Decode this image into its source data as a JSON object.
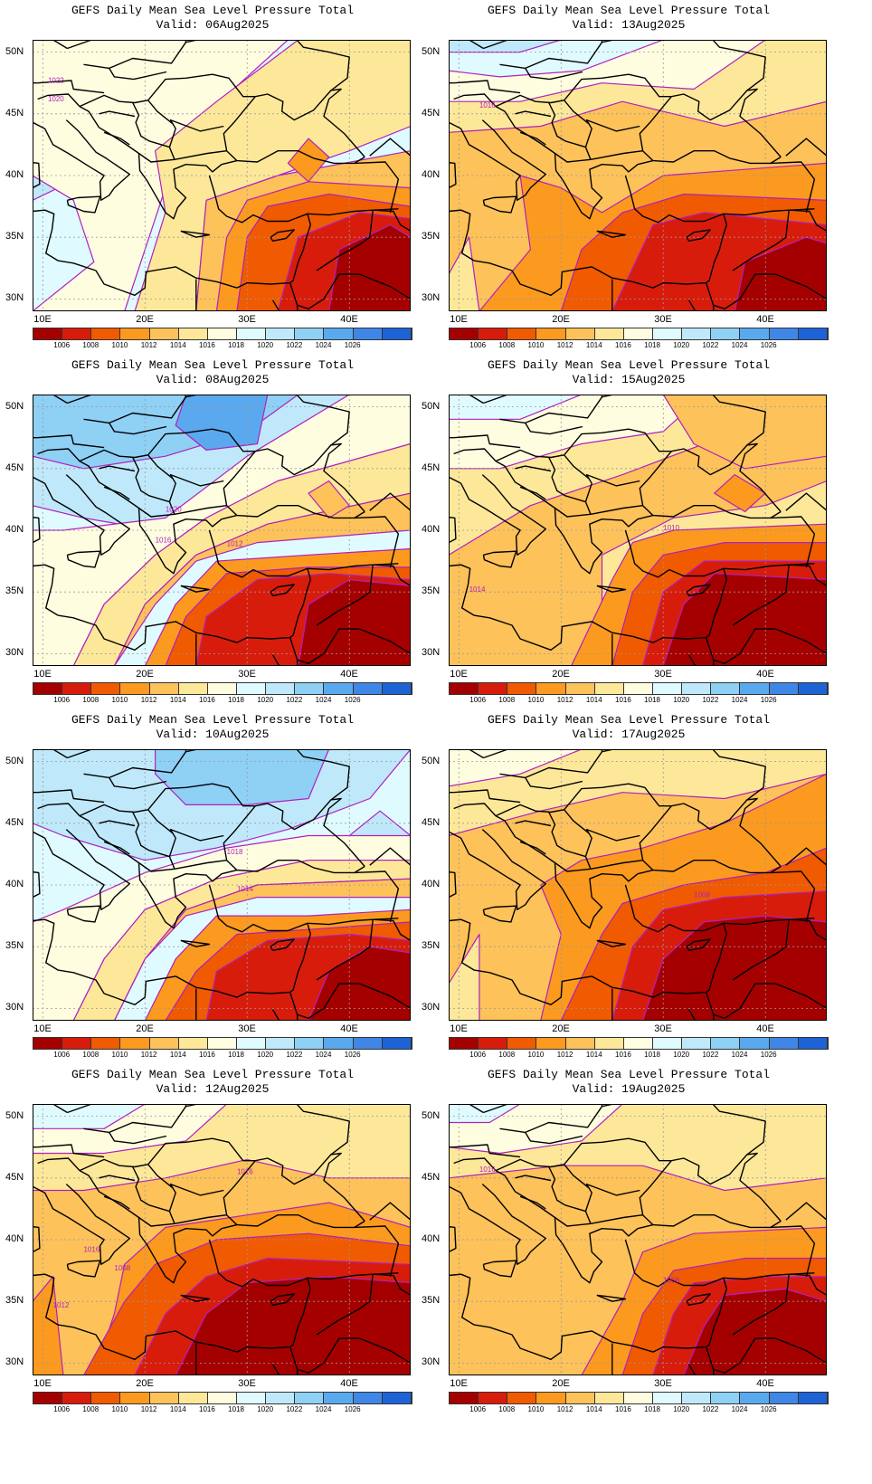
{
  "panels": [
    {
      "title": "GEFS Daily Mean Sea Level Pressure Total",
      "valid": "Valid: 06Aug2025",
      "contour_labels": [
        "1022",
        "1020"
      ]
    },
    {
      "title": "GEFS Daily Mean Sea Level Pressure Total",
      "valid": "Valid: 13Aug2025",
      "contour_labels": [
        "1016"
      ]
    },
    {
      "title": "GEFS Daily Mean Sea Level Pressure Total",
      "valid": "Valid: 08Aug2025",
      "contour_labels": [
        "1020",
        "1016",
        "1012"
      ]
    },
    {
      "title": "GEFS Daily Mean Sea Level Pressure Total",
      "valid": "Valid: 15Aug2025",
      "contour_labels": [
        "1010",
        "1014"
      ]
    },
    {
      "title": "GEFS Daily Mean Sea Level Pressure Total",
      "valid": "Valid: 10Aug2025",
      "contour_labels": [
        "1018",
        "1014"
      ]
    },
    {
      "title": "GEFS Daily Mean Sea Level Pressure Total",
      "valid": "Valid: 17Aug2025",
      "contour_labels": [
        "1008"
      ]
    },
    {
      "title": "GEFS Daily Mean Sea Level Pressure Total",
      "valid": "Valid: 12Aug2025",
      "contour_labels": [
        "1016",
        "1016",
        "1008",
        "1012"
      ]
    },
    {
      "title": "GEFS Daily Mean Sea Level Pressure Total",
      "valid": "Valid: 19Aug2025",
      "contour_labels": [
        "1016",
        "1008"
      ]
    }
  ],
  "axes": {
    "lat_labels": [
      "50N",
      "45N",
      "40N",
      "35N",
      "30N"
    ],
    "lon_labels": [
      "10E",
      "20E",
      "30E",
      "40E"
    ]
  },
  "colorbar": {
    "labels": [
      "1006",
      "1008",
      "1010",
      "1012",
      "1014",
      "1016",
      "1018",
      "1020",
      "1022",
      "1024",
      "1026"
    ],
    "colors": [
      "#a50000",
      "#d81c0c",
      "#f05a00",
      "#fb9a1e",
      "#fdc25a",
      "#fde89a",
      "#fffde0",
      "#e0fbff",
      "#bfe9fb",
      "#8fd0f5",
      "#5aa9ee",
      "#3f86e6",
      "#1e63d6"
    ]
  },
  "map_colors": {
    "contour": "#b020c0",
    "coast": "#000000",
    "grid": "#999999"
  }
}
